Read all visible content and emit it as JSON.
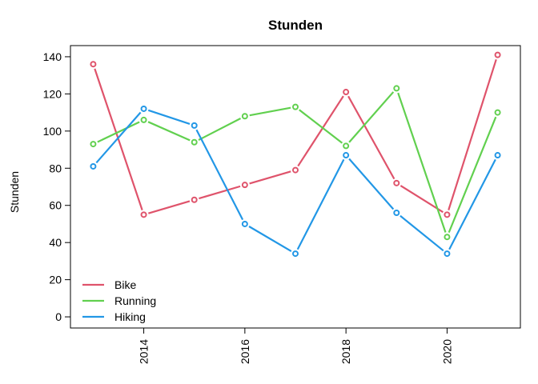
{
  "chart_data": {
    "type": "line",
    "title": "Stunden",
    "xlabel": "",
    "ylabel": "Stunden",
    "x": [
      2013,
      2014,
      2015,
      2016,
      2017,
      2018,
      2019,
      2020,
      2021
    ],
    "xlim": [
      2012.55,
      2021.45
    ],
    "ylim": [
      -6,
      146
    ],
    "x_ticks": [
      2014,
      2016,
      2018,
      2020
    ],
    "y_ticks": [
      0,
      20,
      40,
      60,
      80,
      100,
      120,
      140
    ],
    "grid": false,
    "legend_position": "bottom-left",
    "markers": "open-circle",
    "series": [
      {
        "name": "Bike",
        "color": "#DF536B",
        "values": [
          136,
          55,
          63,
          71,
          79,
          121,
          72,
          55,
          141
        ]
      },
      {
        "name": "Running",
        "color": "#61D04F",
        "values": [
          93,
          106,
          94,
          108,
          113,
          92,
          123,
          43,
          110
        ]
      },
      {
        "name": "Hiking",
        "color": "#2297E6",
        "values": [
          81,
          112,
          103,
          50,
          34,
          87,
          56,
          34,
          87
        ]
      }
    ]
  }
}
